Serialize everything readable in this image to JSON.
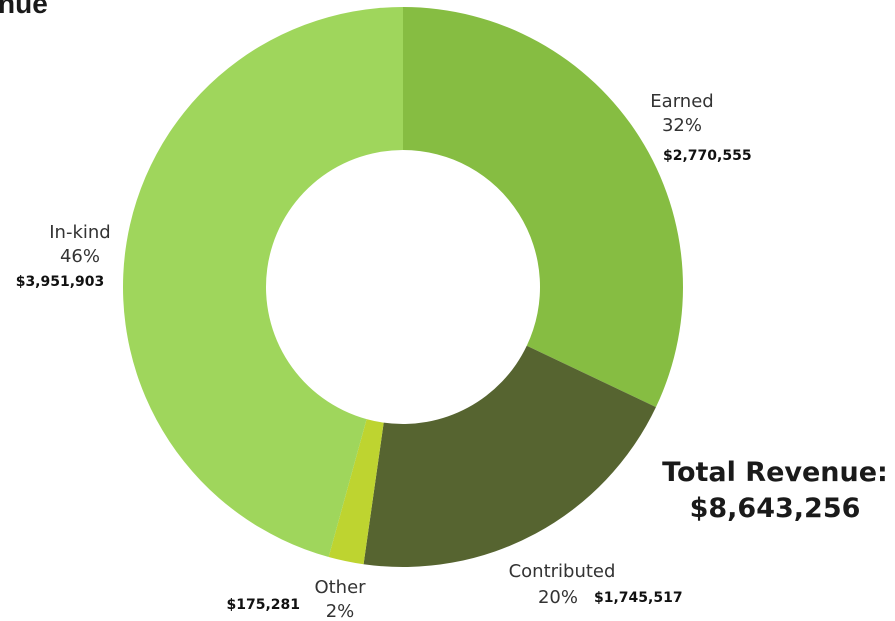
{
  "title": "nue",
  "total": {
    "label": "Total Revenue:",
    "value": "$8,643,256"
  },
  "chart_data": {
    "type": "pie",
    "variant": "donut",
    "categories": [
      "Earned",
      "Contributed",
      "Other",
      "In-kind"
    ],
    "values": [
      2770555,
      1745517,
      175281,
      3951903
    ],
    "percent_labels": [
      "32%",
      "20%",
      "2%",
      "46%"
    ],
    "amount_labels": [
      "$2,770,555",
      "$1,745,517",
      "$175,281",
      "$3,951,903"
    ],
    "colors": [
      "#86bd42",
      "#566430",
      "#bed430",
      "#9fd65c"
    ],
    "start": "12 o'clock",
    "direction": "clockwise",
    "legend": "none"
  }
}
